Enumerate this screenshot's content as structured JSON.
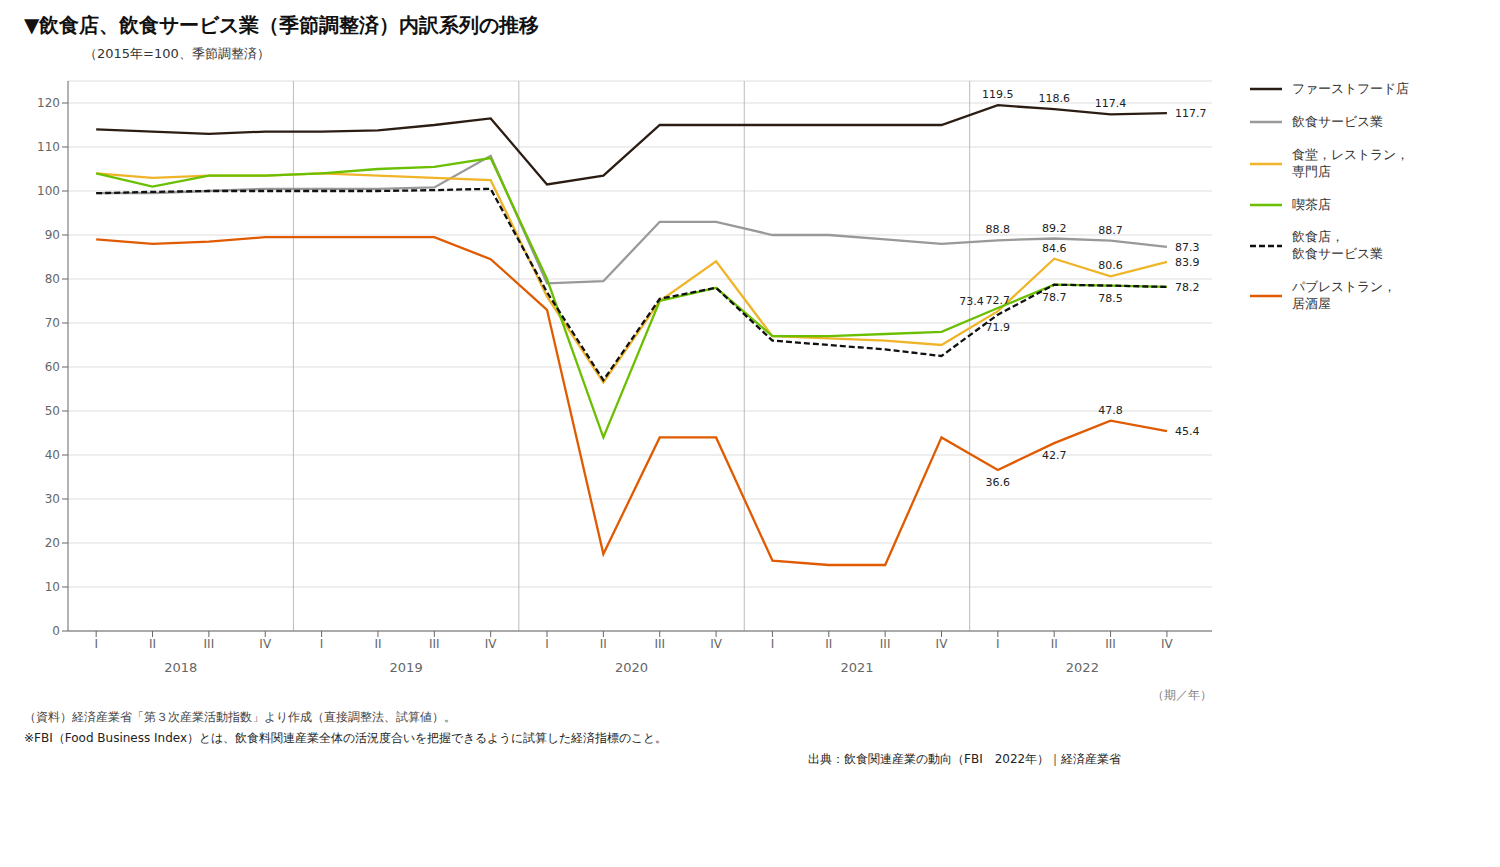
{
  "chart_data": {
    "type": "line",
    "title": "▼飲食店、飲食サービス業（季節調整済）内訳系列の推移",
    "subtitle": "（2015年=100、季節調整済）",
    "xlabel": "（期／年）",
    "year_labels": [
      "2018",
      "2019",
      "2020",
      "2021",
      "2022"
    ],
    "footnotes": [
      "（資料）経済産業省「第３次産業活動指数」より作成（直接調整法、試算値）。",
      "※FBI（Food Business Index）とは、飲食料関連産業全体の活況度合いを把握できるように試算した経済指標のこと。",
      "出典：飲食関連産業の動向（FBI　2022年）｜経済産業省"
    ],
    "categories": [
      "I",
      "II",
      "III",
      "IV",
      "I",
      "II",
      "III",
      "IV",
      "I",
      "II",
      "III",
      "IV",
      "I",
      "II",
      "III",
      "IV",
      "I",
      "II",
      "III",
      "IV"
    ],
    "series": [
      {
        "name": "ファーストフード店",
        "color": "#2b1d13",
        "line_style": "solid",
        "values": [
          114.0,
          113.5,
          113.0,
          113.5,
          113.5,
          113.8,
          115.0,
          116.5,
          101.5,
          103.5,
          115.0,
          115.0,
          115.0,
          115.0,
          115.0,
          115.0,
          119.5,
          118.6,
          117.4,
          117.7
        ],
        "value_labels": [
          null,
          null,
          null,
          null,
          null,
          null,
          null,
          null,
          null,
          null,
          null,
          null,
          null,
          null,
          null,
          null,
          "119.5",
          "118.6",
          "117.4",
          "117.7"
        ]
      },
      {
        "name": "飲食サービス業",
        "color": "#999999",
        "line_style": "solid",
        "values": [
          99.5,
          99.5,
          100.0,
          100.5,
          100.5,
          100.5,
          100.8,
          108.0,
          79.0,
          79.5,
          93.0,
          93.0,
          90.0,
          90.0,
          89.0,
          88.0,
          88.8,
          89.2,
          88.7,
          87.3
        ],
        "value_labels": [
          null,
          null,
          null,
          null,
          null,
          null,
          null,
          null,
          null,
          null,
          null,
          null,
          null,
          null,
          null,
          null,
          "88.8",
          "89.2",
          "88.7",
          "87.3"
        ]
      },
      {
        "name": "食堂，レストラン，\n専門店",
        "color": "#f0b429",
        "line_style": "solid",
        "values": [
          104.0,
          103.0,
          103.5,
          103.5,
          104.0,
          103.5,
          103.0,
          102.5,
          76.0,
          56.5,
          75.0,
          84.0,
          67.0,
          66.5,
          66.0,
          65.0,
          72.7,
          84.6,
          80.6,
          83.9
        ],
        "value_labels": [
          null,
          null,
          null,
          null,
          null,
          null,
          null,
          null,
          null,
          null,
          null,
          null,
          null,
          null,
          null,
          null,
          "72.7",
          "84.6",
          "80.6",
          "83.9"
        ]
      },
      {
        "name": "喫茶店",
        "color": "#6abf00",
        "line_style": "solid",
        "values": [
          104.0,
          101.0,
          103.5,
          103.5,
          104.0,
          105.0,
          105.5,
          107.5,
          80.0,
          44.0,
          75.0,
          78.0,
          67.0,
          67.0,
          67.5,
          68.0,
          73.4,
          78.7,
          78.5,
          78.2
        ],
        "value_labels": [
          null,
          null,
          null,
          null,
          null,
          null,
          null,
          null,
          null,
          null,
          null,
          null,
          null,
          null,
          null,
          null,
          "73.4",
          "78.7",
          "78.5",
          "78.2"
        ]
      },
      {
        "name": "飲食店，\n飲食サービス業",
        "color": "#111111",
        "line_style": "dashed",
        "values": [
          99.5,
          99.8,
          100.0,
          100.0,
          100.0,
          100.0,
          100.2,
          100.5,
          77.0,
          57.0,
          75.5,
          78.0,
          66.0,
          65.0,
          64.0,
          62.5,
          71.9,
          78.7,
          78.5,
          78.2
        ],
        "value_labels": [
          null,
          null,
          null,
          null,
          null,
          null,
          null,
          null,
          null,
          null,
          null,
          null,
          null,
          null,
          null,
          null,
          "71.9",
          null,
          null,
          null
        ]
      },
      {
        "name": "パブレストラン，\n居酒屋",
        "color": "#e05a00",
        "line_style": "solid",
        "values": [
          89.0,
          88.0,
          88.5,
          89.5,
          89.5,
          89.5,
          89.5,
          84.5,
          73.0,
          17.5,
          44.0,
          44.0,
          16.0,
          15.0,
          15.0,
          44.0,
          36.6,
          42.7,
          47.8,
          45.4
        ],
        "value_labels": [
          null,
          null,
          null,
          null,
          null,
          null,
          null,
          null,
          null,
          null,
          null,
          null,
          null,
          null,
          null,
          null,
          "36.6",
          "42.7",
          "47.8",
          "45.4"
        ]
      }
    ],
    "ylim": [
      0,
      125
    ],
    "yticks": [
      0,
      10,
      20,
      30,
      40,
      50,
      60,
      70,
      80,
      90,
      100,
      110,
      120
    ],
    "grid": true,
    "legend": "right"
  }
}
